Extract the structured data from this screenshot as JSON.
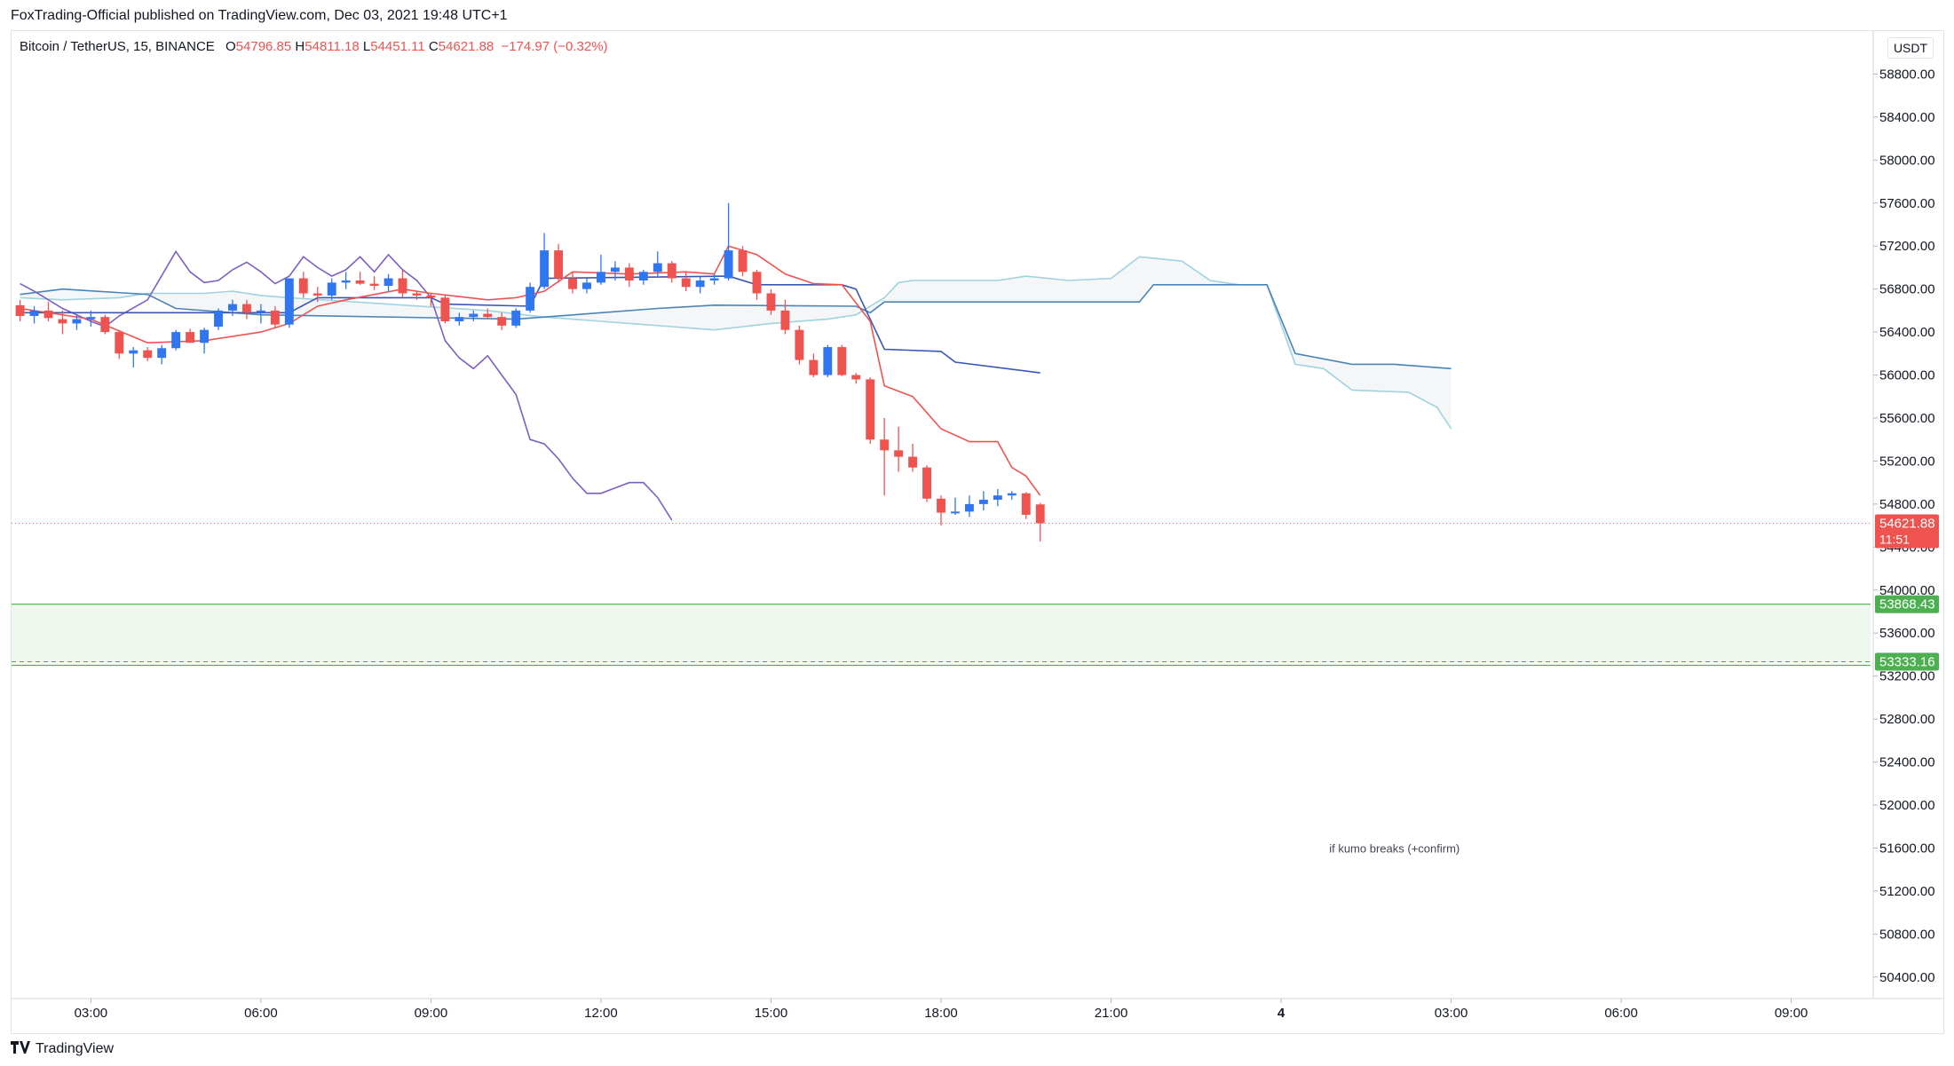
{
  "header": {
    "published_line": "FoxTrading-Official published on TradingView.com, Dec 03, 2021 19:48 UTC+1"
  },
  "symbol_bar": {
    "symbol": "Bitcoin / TetherUS, 15, BINANCE",
    "open_label": "O",
    "open": "54796.85",
    "high_label": "H",
    "high": "54811.18",
    "low_label": "L",
    "low": "54451.11",
    "close_label": "C",
    "close": "54621.88",
    "change": "−174.97 (−0.32%)"
  },
  "currency": "USDT",
  "footer": {
    "logo_text": "TradingView"
  },
  "colors": {
    "up": "#2f76f0",
    "down": "#ef5350",
    "tenkan": "#ef5350",
    "kijun": "#3a56b5",
    "chikou": "#7b5fc7",
    "span_a": "#4b84b7",
    "span_b": "#9fd3df",
    "zone": "#4caf50",
    "zone_fill": "#eef8ee"
  },
  "chart_data": {
    "type": "candlestick",
    "title": "Bitcoin / TetherUS, 15, BINANCE",
    "y_axis": {
      "ticks": [
        58800,
        58400,
        58000,
        57600,
        57200,
        56800,
        56400,
        56000,
        55600,
        55200,
        54800,
        54400,
        54000,
        53600,
        53200,
        52800,
        52400,
        52000,
        51600,
        51200,
        50800,
        50400
      ],
      "ylim": [
        50200,
        59200
      ]
    },
    "x_axis": {
      "ticks": [
        {
          "label": "03:00",
          "hour": 3
        },
        {
          "label": "06:00",
          "hour": 6
        },
        {
          "label": "09:00",
          "hour": 9
        },
        {
          "label": "12:00",
          "hour": 12
        },
        {
          "label": "15:00",
          "hour": 15
        },
        {
          "label": "18:00",
          "hour": 18
        },
        {
          "label": "21:00",
          "hour": 21
        },
        {
          "label": "4",
          "hour": 24,
          "bold": true
        },
        {
          "label": "03:00",
          "hour": 27
        },
        {
          "label": "06:00",
          "hour": 30
        },
        {
          "label": "09:00",
          "hour": 33
        }
      ],
      "xlim": [
        1.6,
        34.4
      ]
    },
    "candles_hourly": [
      {
        "t": 1.75,
        "o": 56650,
        "h": 56700,
        "l": 56500,
        "c": 56550
      },
      {
        "t": 2.0,
        "o": 56550,
        "h": 56640,
        "l": 56480,
        "c": 56600
      },
      {
        "t": 2.25,
        "o": 56600,
        "h": 56680,
        "l": 56500,
        "c": 56530
      },
      {
        "t": 2.5,
        "o": 56520,
        "h": 56600,
        "l": 56380,
        "c": 56480
      },
      {
        "t": 2.75,
        "o": 56480,
        "h": 56560,
        "l": 56420,
        "c": 56520
      },
      {
        "t": 3.0,
        "o": 56520,
        "h": 56600,
        "l": 56450,
        "c": 56540
      },
      {
        "t": 3.25,
        "o": 56540,
        "h": 56560,
        "l": 56380,
        "c": 56400
      },
      {
        "t": 3.5,
        "o": 56400,
        "h": 56420,
        "l": 56150,
        "c": 56200
      },
      {
        "t": 3.75,
        "o": 56200,
        "h": 56260,
        "l": 56070,
        "c": 56230
      },
      {
        "t": 4.0,
        "o": 56230,
        "h": 56260,
        "l": 56130,
        "c": 56160
      },
      {
        "t": 4.25,
        "o": 56160,
        "h": 56280,
        "l": 56100,
        "c": 56250
      },
      {
        "t": 4.5,
        "o": 56250,
        "h": 56420,
        "l": 56230,
        "c": 56400
      },
      {
        "t": 4.75,
        "o": 56400,
        "h": 56430,
        "l": 56300,
        "c": 56300
      },
      {
        "t": 5.0,
        "o": 56300,
        "h": 56440,
        "l": 56200,
        "c": 56420
      },
      {
        "t": 5.25,
        "o": 56450,
        "h": 56620,
        "l": 56420,
        "c": 56600
      },
      {
        "t": 5.5,
        "o": 56600,
        "h": 56700,
        "l": 56550,
        "c": 56660
      },
      {
        "t": 5.75,
        "o": 56660,
        "h": 56700,
        "l": 56520,
        "c": 56580
      },
      {
        "t": 6.0,
        "o": 56580,
        "h": 56660,
        "l": 56480,
        "c": 56600
      },
      {
        "t": 6.25,
        "o": 56600,
        "h": 56640,
        "l": 56440,
        "c": 56470
      },
      {
        "t": 6.5,
        "o": 56470,
        "h": 56880,
        "l": 56440,
        "c": 56900
      },
      {
        "t": 6.75,
        "o": 56900,
        "h": 56960,
        "l": 56720,
        "c": 56760
      },
      {
        "t": 7.0,
        "o": 56760,
        "h": 56820,
        "l": 56680,
        "c": 56740
      },
      {
        "t": 7.25,
        "o": 56740,
        "h": 56900,
        "l": 56700,
        "c": 56860
      },
      {
        "t": 7.5,
        "o": 56860,
        "h": 56960,
        "l": 56800,
        "c": 56880
      },
      {
        "t": 7.75,
        "o": 56880,
        "h": 56960,
        "l": 56840,
        "c": 56850
      },
      {
        "t": 8.0,
        "o": 56850,
        "h": 56920,
        "l": 56790,
        "c": 56830
      },
      {
        "t": 8.25,
        "o": 56830,
        "h": 56940,
        "l": 56780,
        "c": 56900
      },
      {
        "t": 8.5,
        "o": 56900,
        "h": 56980,
        "l": 56720,
        "c": 56760
      },
      {
        "t": 8.75,
        "o": 56760,
        "h": 56780,
        "l": 56700,
        "c": 56740
      },
      {
        "t": 9.0,
        "o": 56740,
        "h": 56760,
        "l": 56640,
        "c": 56720
      },
      {
        "t": 9.25,
        "o": 56720,
        "h": 56740,
        "l": 56480,
        "c": 56500
      },
      {
        "t": 9.5,
        "o": 56500,
        "h": 56580,
        "l": 56460,
        "c": 56540
      },
      {
        "t": 9.75,
        "o": 56540,
        "h": 56600,
        "l": 56500,
        "c": 56570
      },
      {
        "t": 10.0,
        "o": 56570,
        "h": 56620,
        "l": 56520,
        "c": 56540
      },
      {
        "t": 10.25,
        "o": 56540,
        "h": 56580,
        "l": 56420,
        "c": 56460
      },
      {
        "t": 10.5,
        "o": 56460,
        "h": 56620,
        "l": 56440,
        "c": 56600
      },
      {
        "t": 10.75,
        "o": 56600,
        "h": 56860,
        "l": 56580,
        "c": 56820
      },
      {
        "t": 11.0,
        "o": 56820,
        "h": 57320,
        "l": 56800,
        "c": 57160
      },
      {
        "t": 11.25,
        "o": 57160,
        "h": 57220,
        "l": 56860,
        "c": 56900
      },
      {
        "t": 11.5,
        "o": 56900,
        "h": 56960,
        "l": 56760,
        "c": 56800
      },
      {
        "t": 11.75,
        "o": 56800,
        "h": 56900,
        "l": 56760,
        "c": 56860
      },
      {
        "t": 12.0,
        "o": 56860,
        "h": 57120,
        "l": 56840,
        "c": 56960
      },
      {
        "t": 12.25,
        "o": 56960,
        "h": 57060,
        "l": 56880,
        "c": 57000
      },
      {
        "t": 12.5,
        "o": 57000,
        "h": 57040,
        "l": 56820,
        "c": 56880
      },
      {
        "t": 12.75,
        "o": 56880,
        "h": 56980,
        "l": 56840,
        "c": 56960
      },
      {
        "t": 13.0,
        "o": 56960,
        "h": 57150,
        "l": 56920,
        "c": 57040
      },
      {
        "t": 13.25,
        "o": 57040,
        "h": 57060,
        "l": 56860,
        "c": 56900
      },
      {
        "t": 13.5,
        "o": 56900,
        "h": 56960,
        "l": 56780,
        "c": 56820
      },
      {
        "t": 13.75,
        "o": 56820,
        "h": 56920,
        "l": 56760,
        "c": 56880
      },
      {
        "t": 14.0,
        "o": 56880,
        "h": 56940,
        "l": 56840,
        "c": 56900
      },
      {
        "t": 14.25,
        "o": 56900,
        "h": 57600,
        "l": 56880,
        "c": 57160
      },
      {
        "t": 14.5,
        "o": 57160,
        "h": 57200,
        "l": 56920,
        "c": 56960
      },
      {
        "t": 14.75,
        "o": 56960,
        "h": 56980,
        "l": 56700,
        "c": 56760
      },
      {
        "t": 15.0,
        "o": 56760,
        "h": 56800,
        "l": 56560,
        "c": 56600
      },
      {
        "t": 15.25,
        "o": 56600,
        "h": 56700,
        "l": 56380,
        "c": 56420
      },
      {
        "t": 15.5,
        "o": 56420,
        "h": 56460,
        "l": 56100,
        "c": 56140
      },
      {
        "t": 15.75,
        "o": 56140,
        "h": 56200,
        "l": 55980,
        "c": 56000
      },
      {
        "t": 16.0,
        "o": 56000,
        "h": 56280,
        "l": 55980,
        "c": 56260
      },
      {
        "t": 16.25,
        "o": 56260,
        "h": 56280,
        "l": 55990,
        "c": 56000
      },
      {
        "t": 16.5,
        "o": 56000,
        "h": 56020,
        "l": 55920,
        "c": 55960
      },
      {
        "t": 16.75,
        "o": 55960,
        "h": 55980,
        "l": 55360,
        "c": 55400
      },
      {
        "t": 17.0,
        "o": 55400,
        "h": 55600,
        "l": 54880,
        "c": 55300
      },
      {
        "t": 17.25,
        "o": 55300,
        "h": 55520,
        "l": 55100,
        "c": 55240
      },
      {
        "t": 17.5,
        "o": 55240,
        "h": 55360,
        "l": 55100,
        "c": 55140
      },
      {
        "t": 17.75,
        "o": 55140,
        "h": 55160,
        "l": 54820,
        "c": 54850
      },
      {
        "t": 18.0,
        "o": 54850,
        "h": 54880,
        "l": 54600,
        "c": 54720
      },
      {
        "t": 18.25,
        "o": 54720,
        "h": 54860,
        "l": 54700,
        "c": 54730
      },
      {
        "t": 18.5,
        "o": 54730,
        "h": 54880,
        "l": 54680,
        "c": 54800
      },
      {
        "t": 18.75,
        "o": 54800,
        "h": 54920,
        "l": 54740,
        "c": 54840
      },
      {
        "t": 19.0,
        "o": 54840,
        "h": 54940,
        "l": 54780,
        "c": 54880
      },
      {
        "t": 19.25,
        "o": 54880,
        "h": 54920,
        "l": 54840,
        "c": 54900
      },
      {
        "t": 19.5,
        "o": 54900,
        "h": 54910,
        "l": 54660,
        "c": 54700
      },
      {
        "t": 19.75,
        "o": 54796.85,
        "h": 54811.18,
        "l": 54451.11,
        "c": 54621.88
      }
    ],
    "tenkan_sen": [
      [
        1.75,
        56620
      ],
      [
        3.0,
        56520
      ],
      [
        4.0,
        56300
      ],
      [
        5.0,
        56320
      ],
      [
        6.0,
        56400
      ],
      [
        6.5,
        56480
      ],
      [
        7.0,
        56640
      ],
      [
        7.5,
        56700
      ],
      [
        8.5,
        56800
      ],
      [
        9.0,
        56760
      ],
      [
        10.0,
        56700
      ],
      [
        10.5,
        56720
      ],
      [
        11.0,
        56780
      ],
      [
        11.5,
        56960
      ],
      [
        12.5,
        56940
      ],
      [
        13.5,
        56960
      ],
      [
        14.0,
        56940
      ],
      [
        14.25,
        57200
      ],
      [
        14.75,
        57120
      ],
      [
        15.25,
        56940
      ],
      [
        15.75,
        56850
      ],
      [
        16.25,
        56840
      ],
      [
        16.75,
        56500
      ],
      [
        17.0,
        55900
      ],
      [
        17.5,
        55800
      ],
      [
        18.0,
        55500
      ],
      [
        18.5,
        55380
      ],
      [
        19.0,
        55380
      ],
      [
        19.25,
        55140
      ],
      [
        19.5,
        55060
      ],
      [
        19.75,
        54880
      ]
    ],
    "kijun_sen": [
      [
        1.75,
        56580
      ],
      [
        6.5,
        56580
      ],
      [
        7.0,
        56720
      ],
      [
        9.0,
        56720
      ],
      [
        9.25,
        56660
      ],
      [
        10.75,
        56640
      ],
      [
        11.0,
        56900
      ],
      [
        14.25,
        56920
      ],
      [
        14.75,
        56840
      ],
      [
        16.25,
        56840
      ],
      [
        16.5,
        56800
      ],
      [
        17.0,
        56240
      ],
      [
        18.0,
        56220
      ],
      [
        18.25,
        56120
      ],
      [
        19.75,
        56020
      ]
    ],
    "chikou_span": [
      [
        1.75,
        56850
      ],
      [
        2.0,
        56780
      ],
      [
        2.5,
        56620
      ],
      [
        3.0,
        56500
      ],
      [
        3.25,
        56450
      ],
      [
        3.5,
        56550
      ],
      [
        4.0,
        56700
      ],
      [
        4.5,
        57150
      ],
      [
        4.75,
        56960
      ],
      [
        5.0,
        56860
      ],
      [
        5.25,
        56880
      ],
      [
        5.5,
        56980
      ],
      [
        5.75,
        57050
      ],
      [
        6.0,
        56960
      ],
      [
        6.25,
        56850
      ],
      [
        6.5,
        56920
      ],
      [
        6.75,
        57100
      ],
      [
        7.0,
        57000
      ],
      [
        7.25,
        56920
      ],
      [
        7.5,
        56980
      ],
      [
        7.75,
        57100
      ],
      [
        8.0,
        56960
      ],
      [
        8.25,
        57120
      ],
      [
        8.5,
        56980
      ],
      [
        8.75,
        56880
      ],
      [
        9.0,
        56720
      ],
      [
        9.25,
        56320
      ],
      [
        9.5,
        56160
      ],
      [
        9.75,
        56060
      ],
      [
        10.0,
        56180
      ],
      [
        10.25,
        56000
      ],
      [
        10.5,
        55820
      ],
      [
        10.75,
        55400
      ],
      [
        11.0,
        55360
      ],
      [
        11.25,
        55220
      ],
      [
        11.5,
        55040
      ],
      [
        11.75,
        54900
      ],
      [
        12.0,
        54900
      ],
      [
        12.25,
        54950
      ],
      [
        12.5,
        55000
      ],
      [
        12.75,
        55000
      ],
      [
        13.0,
        54860
      ],
      [
        13.25,
        54650
      ]
    ],
    "senkou_span_a": [
      [
        1.75,
        56750
      ],
      [
        2.5,
        56800
      ],
      [
        4.0,
        56750
      ],
      [
        4.5,
        56620
      ],
      [
        6.0,
        56560
      ],
      [
        10.5,
        56520
      ],
      [
        11.0,
        56540
      ],
      [
        12.0,
        56580
      ],
      [
        13.0,
        56620
      ],
      [
        14.0,
        56650
      ],
      [
        16.5,
        56640
      ],
      [
        16.75,
        56580
      ],
      [
        17.0,
        56680
      ],
      [
        21.5,
        56680
      ],
      [
        21.75,
        56840
      ],
      [
        23.75,
        56840
      ],
      [
        24.25,
        56200
      ],
      [
        25.25,
        56100
      ],
      [
        26.0,
        56100
      ],
      [
        27.0,
        56060
      ]
    ],
    "senkou_span_b": [
      [
        1.75,
        56720
      ],
      [
        2.5,
        56700
      ],
      [
        3.5,
        56720
      ],
      [
        4.0,
        56760
      ],
      [
        5.0,
        56760
      ],
      [
        5.5,
        56780
      ],
      [
        6.0,
        56740
      ],
      [
        6.5,
        56720
      ],
      [
        10.0,
        56600
      ],
      [
        11.0,
        56540
      ],
      [
        12.0,
        56500
      ],
      [
        13.0,
        56460
      ],
      [
        14.0,
        56420
      ],
      [
        15.0,
        56480
      ],
      [
        16.0,
        56520
      ],
      [
        16.5,
        56560
      ],
      [
        17.0,
        56720
      ],
      [
        17.25,
        56860
      ],
      [
        17.5,
        56880
      ],
      [
        19.0,
        56880
      ],
      [
        19.5,
        56920
      ],
      [
        20.25,
        56880
      ],
      [
        21.0,
        56900
      ],
      [
        21.5,
        57100
      ],
      [
        22.25,
        57060
      ],
      [
        22.75,
        56880
      ],
      [
        23.25,
        56840
      ],
      [
        23.75,
        56840
      ],
      [
        24.25,
        56100
      ],
      [
        24.75,
        56060
      ],
      [
        25.25,
        55860
      ],
      [
        26.25,
        55840
      ],
      [
        26.75,
        55700
      ],
      [
        27.0,
        55500
      ]
    ],
    "last_price": {
      "value": 54621.88,
      "label": "54621.88",
      "countdown": "11:51"
    },
    "zone": {
      "top": 53868.43,
      "bottom": 53333.16,
      "top_label": "53868.43",
      "bottom_label": "53333.16"
    },
    "annotation": {
      "text": "if kumo breaks (+confirm)",
      "x": 26.0,
      "y": 51600
    }
  }
}
